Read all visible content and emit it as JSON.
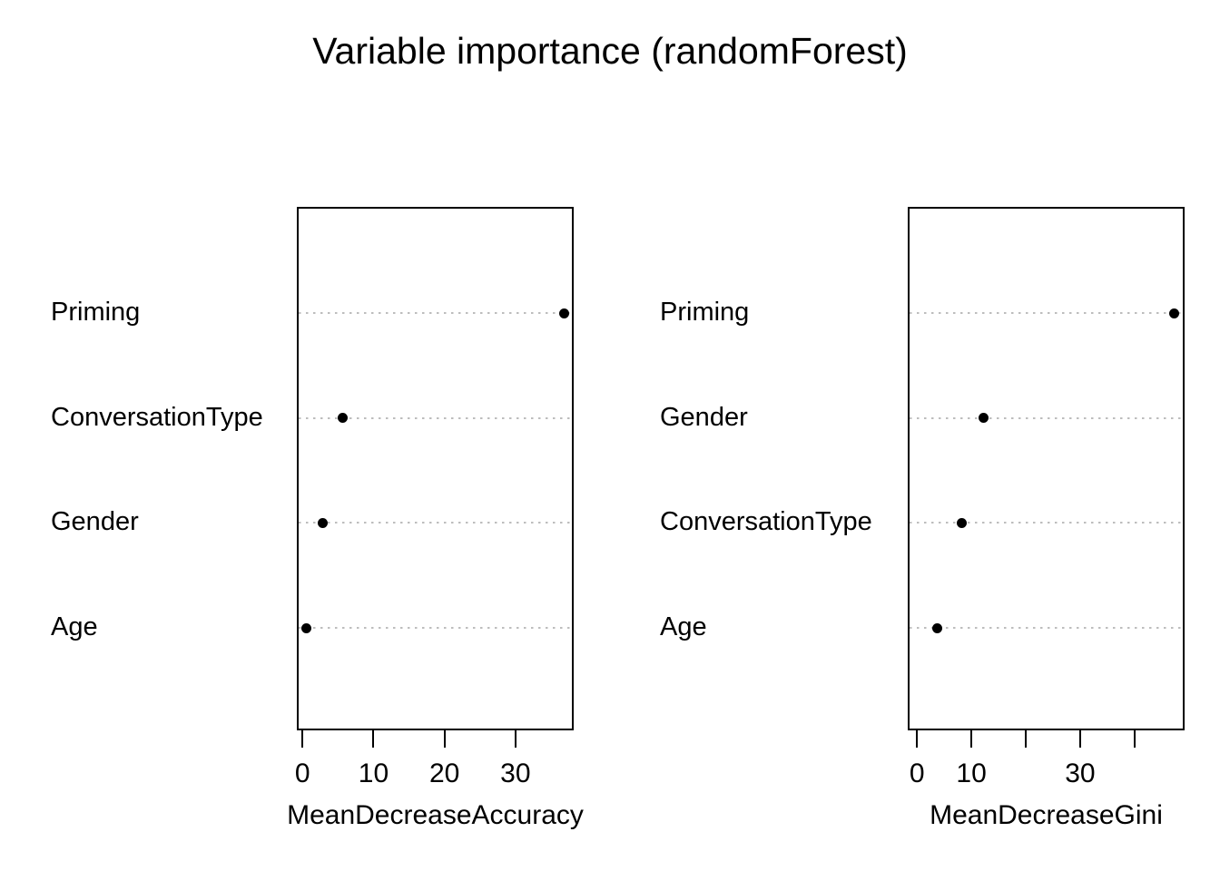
{
  "title": "Variable importance (randomForest)",
  "colors": {
    "point": "#000000",
    "gridline": "#bdbdbd",
    "box_border": "#000000",
    "background": "#ffffff",
    "text": "#000000"
  },
  "chart_data": [
    {
      "type": "scatter",
      "subtype": "dotchart",
      "title": "",
      "xlabel": "MeanDecreaseAccuracy",
      "ylabel": "",
      "categories": [
        "Priming",
        "ConversationType",
        "Gender",
        "Age"
      ],
      "values": [
        36.9,
        5.7,
        2.8,
        0.5
      ],
      "xlim": [
        -0.8,
        38.2
      ],
      "xticks": [
        0,
        10,
        20,
        30
      ],
      "xtick_labels": [
        "0",
        "10",
        "20",
        "30"
      ],
      "grid": "horizontal dotted line per category",
      "legend": "none",
      "point_style": "filled black circle"
    },
    {
      "type": "scatter",
      "subtype": "dotchart",
      "title": "",
      "xlabel": "MeanDecreaseGini",
      "ylabel": "",
      "categories": [
        "Priming",
        "Gender",
        "ConversationType",
        "Age"
      ],
      "values": [
        47.2,
        12.2,
        8.3,
        3.7
      ],
      "xlim": [
        -1.7,
        49.2
      ],
      "xticks": [
        0,
        10,
        20,
        30,
        40
      ],
      "xtick_labels": [
        "0",
        "10",
        "",
        "30",
        ""
      ],
      "grid": "horizontal dotted line per category",
      "legend": "none",
      "point_style": "filled black circle"
    }
  ]
}
